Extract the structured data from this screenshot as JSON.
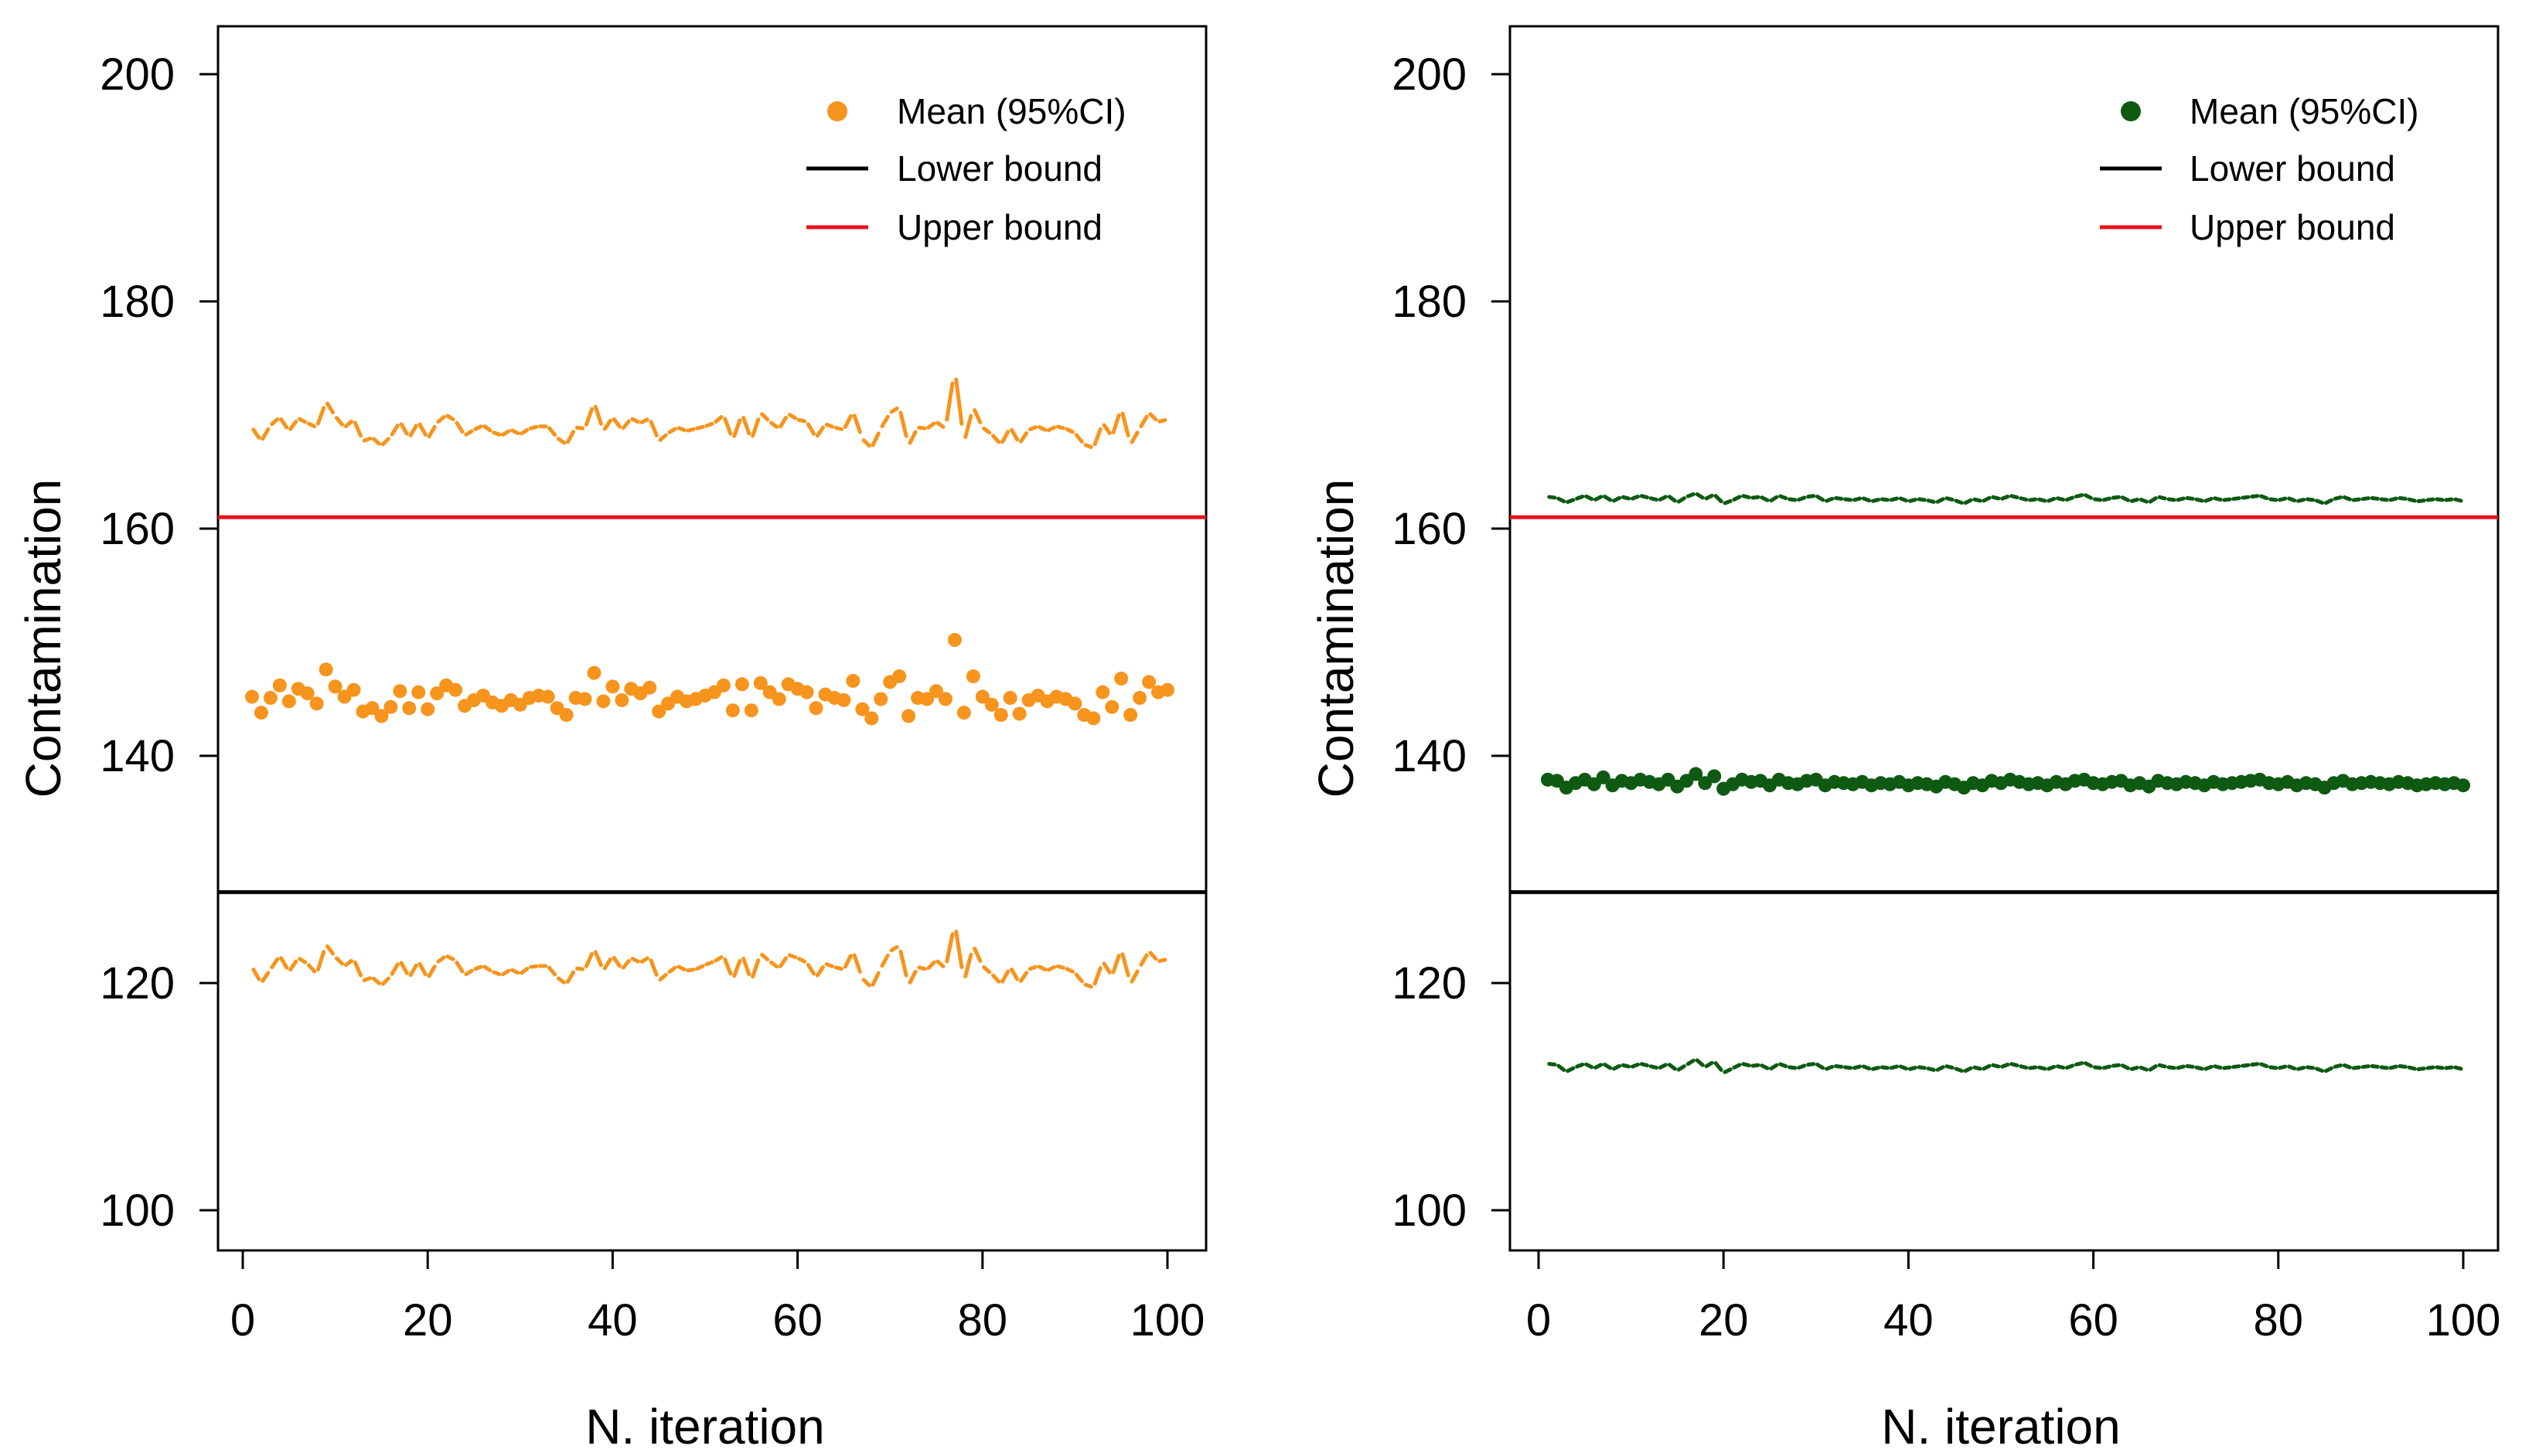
{
  "chart_data": [
    {
      "type": "scatter",
      "panel": "left",
      "xlabel": "N. iteration",
      "ylabel": "Contamination",
      "xlim": [
        0,
        100
      ],
      "ylim": [
        100,
        200
      ],
      "xticks": [
        "0",
        "20",
        "40",
        "60",
        "80",
        "100"
      ],
      "yticks": [
        "100",
        "120",
        "140",
        "160",
        "180",
        "200"
      ],
      "legend_position": "top-right",
      "legend": [
        {
          "label": "Mean (95%CI)",
          "kind": "point"
        },
        {
          "label": "Lower bound",
          "kind": "line"
        },
        {
          "label": "Upper bound",
          "kind": "line"
        }
      ],
      "colors": {
        "series": "#F7941D",
        "lower": "#000000",
        "upper": "#E8141C"
      },
      "lower_bound": 128,
      "upper_bound": 161,
      "series": [
        {
          "name": "Mean",
          "style": "points",
          "x_start": 1,
          "values": [
            145.2,
            143.8,
            145.1,
            146.2,
            144.8,
            145.9,
            145.5,
            144.6,
            147.6,
            146.1,
            145.2,
            145.8,
            143.9,
            144.2,
            143.5,
            144.3,
            145.7,
            144.2,
            145.6,
            144.1,
            145.5,
            146.2,
            145.8,
            144.4,
            144.9,
            145.3,
            144.7,
            144.4,
            144.9,
            144.5,
            145.1,
            145.3,
            145.2,
            144.2,
            143.6,
            145.1,
            145.0,
            147.3,
            144.8,
            146.1,
            144.9,
            145.9,
            145.5,
            146.0,
            143.9,
            144.6,
            145.2,
            144.8,
            145.0,
            145.3,
            145.6,
            146.2,
            144.0,
            146.3,
            144.0,
            146.4,
            145.6,
            145.0,
            146.3,
            145.9,
            145.6,
            144.2,
            145.4,
            145.1,
            144.9,
            146.6,
            144.1,
            143.3,
            145.0,
            146.5,
            147.0,
            143.5,
            145.1,
            145.0,
            145.7,
            145.0,
            150.2,
            143.8,
            147.0,
            145.2,
            144.5,
            143.6,
            145.1,
            143.7,
            144.9,
            145.3,
            144.8,
            145.2,
            145.0,
            144.6,
            143.6,
            143.3,
            145.6,
            144.3,
            146.8,
            143.6,
            145.1,
            146.5,
            145.6,
            145.8
          ]
        },
        {
          "name": "Upper 95%CI",
          "style": "dashed",
          "values": [
            168.9,
            167.7,
            169.1,
            169.8,
            168.6,
            169.7,
            169.3,
            168.9,
            171.2,
            169.9,
            168.9,
            169.6,
            167.7,
            168.0,
            167.3,
            168.1,
            169.4,
            168.0,
            169.4,
            167.9,
            169.3,
            170.0,
            169.5,
            168.2,
            168.7,
            169.1,
            168.5,
            168.2,
            168.7,
            168.3,
            168.8,
            169.0,
            169.0,
            168.0,
            167.4,
            168.9,
            168.8,
            171.1,
            168.6,
            169.8,
            168.7,
            169.7,
            169.3,
            169.7,
            167.7,
            168.4,
            168.9,
            168.6,
            168.8,
            169.0,
            169.3,
            170.0,
            167.8,
            170.1,
            167.8,
            170.2,
            169.4,
            168.8,
            170.1,
            169.6,
            169.4,
            168.0,
            169.2,
            168.9,
            168.7,
            170.3,
            167.9,
            167.1,
            168.8,
            170.2,
            170.7,
            167.3,
            168.9,
            168.8,
            169.4,
            168.8,
            174.1,
            167.6,
            170.7,
            168.9,
            168.3,
            167.4,
            168.9,
            167.5,
            168.7,
            169.0,
            168.6,
            169.0,
            168.8,
            168.4,
            167.4,
            167.1,
            169.3,
            168.1,
            170.6,
            167.4,
            168.8,
            170.2,
            169.4,
            169.6
          ]
        },
        {
          "name": "Lower 95%CI",
          "style": "dashed",
          "values": [
            121.4,
            120.0,
            121.2,
            122.4,
            121.0,
            122.2,
            121.7,
            120.8,
            123.4,
            122.3,
            121.5,
            122.1,
            120.2,
            120.5,
            119.8,
            120.6,
            122.0,
            120.5,
            121.9,
            120.4,
            121.8,
            122.4,
            122.0,
            120.7,
            121.2,
            121.5,
            121.0,
            120.7,
            121.2,
            120.8,
            121.4,
            121.5,
            121.5,
            120.5,
            119.9,
            121.3,
            121.2,
            123.0,
            121.1,
            122.4,
            121.2,
            122.2,
            121.8,
            122.3,
            120.2,
            120.9,
            121.5,
            121.1,
            121.2,
            121.6,
            121.9,
            122.4,
            120.3,
            122.5,
            120.2,
            122.6,
            121.9,
            121.3,
            122.5,
            122.2,
            121.8,
            120.5,
            121.7,
            121.4,
            121.2,
            122.8,
            120.4,
            119.6,
            121.3,
            122.8,
            123.3,
            119.8,
            121.4,
            121.2,
            122.0,
            121.3,
            125.3,
            120.1,
            123.3,
            121.5,
            120.8,
            119.9,
            121.4,
            120.0,
            121.2,
            121.5,
            121.1,
            121.5,
            121.3,
            120.9,
            119.9,
            119.6,
            121.9,
            120.6,
            123.0,
            119.9,
            121.4,
            122.8,
            121.9,
            122.1
          ]
        }
      ]
    },
    {
      "type": "scatter",
      "panel": "right",
      "xlabel": "N. iteration",
      "ylabel": "Contamination",
      "xlim": [
        0,
        100
      ],
      "ylim": [
        100,
        200
      ],
      "xticks": [
        "0",
        "20",
        "40",
        "60",
        "80",
        "100"
      ],
      "yticks": [
        "100",
        "120",
        "140",
        "160",
        "180",
        "200"
      ],
      "legend_position": "top-right",
      "legend": [
        {
          "label": "Mean (95%CI)",
          "kind": "point"
        },
        {
          "label": "Lower bound",
          "kind": "line"
        },
        {
          "label": "Upper bound",
          "kind": "line"
        }
      ],
      "colors": {
        "series": "#0E5A12",
        "lower": "#000000",
        "upper": "#E8141C"
      },
      "lower_bound": 128,
      "upper_bound": 161,
      "series": [
        {
          "name": "Mean",
          "style": "points",
          "x_start": 1,
          "values": [
            137.9,
            137.8,
            137.2,
            137.6,
            137.9,
            137.5,
            138.1,
            137.4,
            137.8,
            137.6,
            137.9,
            137.7,
            137.5,
            137.9,
            137.3,
            137.8,
            138.4,
            137.6,
            138.2,
            137.1,
            137.5,
            137.9,
            137.7,
            137.8,
            137.4,
            137.9,
            137.6,
            137.5,
            137.8,
            137.9,
            137.4,
            137.7,
            137.6,
            137.5,
            137.7,
            137.4,
            137.6,
            137.5,
            137.7,
            137.4,
            137.6,
            137.5,
            137.3,
            137.7,
            137.5,
            137.2,
            137.6,
            137.4,
            137.8,
            137.6,
            137.9,
            137.7,
            137.5,
            137.6,
            137.4,
            137.7,
            137.5,
            137.8,
            137.9,
            137.6,
            137.5,
            137.7,
            137.8,
            137.4,
            137.6,
            137.3,
            137.8,
            137.6,
            137.5,
            137.7,
            137.6,
            137.4,
            137.7,
            137.5,
            137.6,
            137.7,
            137.8,
            137.9,
            137.6,
            137.5,
            137.7,
            137.4,
            137.6,
            137.5,
            137.2,
            137.6,
            137.8,
            137.5,
            137.6,
            137.7,
            137.6,
            137.5,
            137.7,
            137.6,
            137.4,
            137.5,
            137.6,
            137.5,
            137.6,
            137.4
          ]
        },
        {
          "name": "Upper 95%CI",
          "style": "dashed",
          "values": [
            162.8,
            162.7,
            162.3,
            162.6,
            162.9,
            162.5,
            162.9,
            162.4,
            162.8,
            162.6,
            162.9,
            162.7,
            162.5,
            162.9,
            162.3,
            162.8,
            163.1,
            162.6,
            163.0,
            162.2,
            162.5,
            162.9,
            162.7,
            162.8,
            162.4,
            162.9,
            162.6,
            162.5,
            162.8,
            162.9,
            162.4,
            162.7,
            162.6,
            162.5,
            162.7,
            162.4,
            162.6,
            162.5,
            162.7,
            162.4,
            162.6,
            162.5,
            162.3,
            162.7,
            162.5,
            162.2,
            162.6,
            162.4,
            162.8,
            162.6,
            162.9,
            162.7,
            162.5,
            162.6,
            162.4,
            162.7,
            162.5,
            162.8,
            163.0,
            162.6,
            162.5,
            162.7,
            162.8,
            162.4,
            162.6,
            162.3,
            162.8,
            162.6,
            162.5,
            162.7,
            162.6,
            162.4,
            162.7,
            162.5,
            162.6,
            162.7,
            162.8,
            162.9,
            162.6,
            162.5,
            162.7,
            162.4,
            162.6,
            162.5,
            162.2,
            162.6,
            162.8,
            162.5,
            162.6,
            162.7,
            162.6,
            162.5,
            162.7,
            162.6,
            162.4,
            162.5,
            162.6,
            162.5,
            162.6,
            162.4
          ]
        },
        {
          "name": "Lower 95%CI",
          "style": "dashed",
          "values": [
            112.9,
            112.8,
            112.2,
            112.6,
            112.9,
            112.5,
            112.9,
            112.4,
            112.8,
            112.6,
            112.9,
            112.7,
            112.5,
            112.9,
            112.3,
            112.8,
            113.3,
            112.6,
            113.1,
            112.1,
            112.5,
            112.9,
            112.7,
            112.8,
            112.4,
            112.9,
            112.6,
            112.5,
            112.8,
            112.9,
            112.4,
            112.7,
            112.6,
            112.5,
            112.7,
            112.4,
            112.6,
            112.5,
            112.7,
            112.4,
            112.6,
            112.5,
            112.3,
            112.7,
            112.5,
            112.2,
            112.6,
            112.4,
            112.8,
            112.6,
            112.9,
            112.7,
            112.5,
            112.6,
            112.4,
            112.7,
            112.5,
            112.8,
            113.0,
            112.6,
            112.5,
            112.7,
            112.8,
            112.4,
            112.6,
            112.3,
            112.8,
            112.6,
            112.5,
            112.7,
            112.6,
            112.4,
            112.7,
            112.5,
            112.6,
            112.7,
            112.8,
            112.9,
            112.6,
            112.5,
            112.7,
            112.4,
            112.6,
            112.5,
            112.2,
            112.6,
            112.8,
            112.5,
            112.6,
            112.7,
            112.6,
            112.5,
            112.7,
            112.6,
            112.4,
            112.5,
            112.6,
            112.5,
            112.6,
            112.4
          ]
        }
      ]
    }
  ]
}
